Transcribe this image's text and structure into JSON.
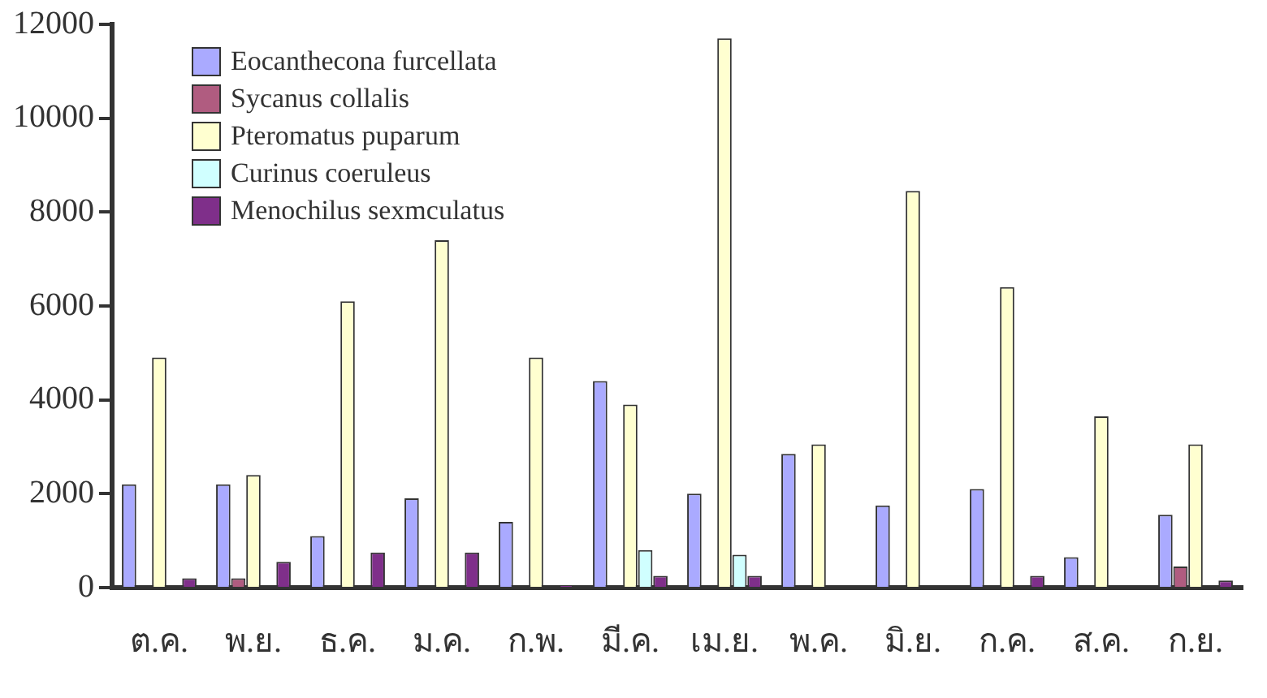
{
  "chart_data": {
    "type": "bar",
    "categories": [
      "ต.ค.",
      "พ.ย.",
      "ธ.ค.",
      "ม.ค.",
      "ก.พ.",
      "มี.ค.",
      "เม.ย.",
      "พ.ค.",
      "มิ.ย.",
      "ก.ค.",
      "ส.ค.",
      "ก.ย."
    ],
    "series": [
      {
        "name": "Eocanthecona furcellata",
        "color": "#aaaaff",
        "values": [
          2200,
          2200,
          1100,
          1900,
          1400,
          4400,
          2000,
          2850,
          1750,
          2100,
          650,
          1550
        ]
      },
      {
        "name": "Sycanus collalis",
        "color": "#b05c80",
        "values": [
          0,
          200,
          0,
          0,
          0,
          0,
          0,
          0,
          0,
          null,
          0,
          450
        ]
      },
      {
        "name": "Pteromatus puparum",
        "color": "#ffffd0",
        "values": [
          4900,
          2400,
          6100,
          7400,
          4900,
          3900,
          11700,
          3050,
          8450,
          6400,
          3650,
          3050
        ]
      },
      {
        "name": "Curinus coeruleus",
        "color": "#d0ffff",
        "values": [
          0,
          0,
          0,
          0,
          0,
          800,
          700,
          0,
          0,
          0,
          0,
          0
        ]
      },
      {
        "name": "Menochilus sexmculatus",
        "color": "#7f2f8a",
        "values": [
          200,
          550,
          750,
          750,
          50,
          250,
          250,
          0,
          0,
          250,
          0,
          150
        ]
      }
    ],
    "ylim": [
      0,
      12000
    ],
    "yticks": [
      0,
      2000,
      4000,
      6000,
      8000,
      10000,
      12000
    ],
    "grid": false,
    "legend": "top left"
  }
}
